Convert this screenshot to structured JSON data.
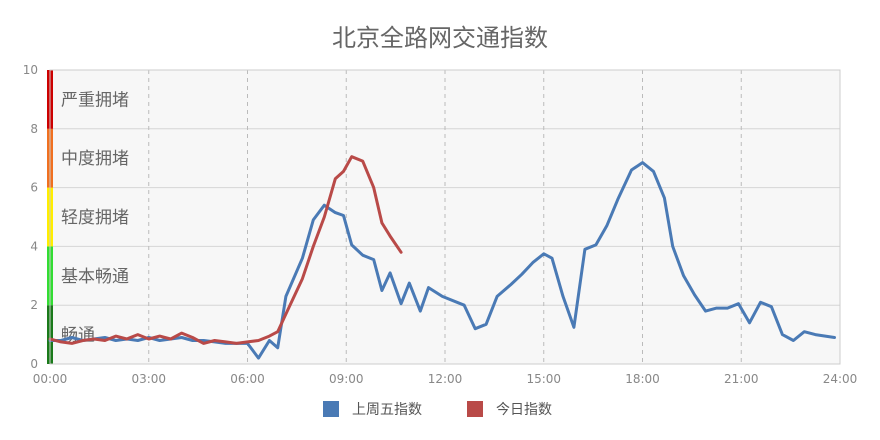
{
  "chart_data": {
    "type": "line",
    "title": "北京全路网交通指数",
    "xlabel": "",
    "ylabel": "",
    "ylim": [
      0,
      10
    ],
    "xlim_hours": [
      0,
      24
    ],
    "x_ticks": [
      "00:00",
      "03:00",
      "06:00",
      "09:00",
      "12:00",
      "15:00",
      "18:00",
      "21:00",
      "24:00"
    ],
    "y_ticks": [
      "0",
      "2",
      "4",
      "6",
      "8",
      "10"
    ],
    "grid": true,
    "legend_position": "bottom-center",
    "bands": [
      {
        "label": "畅通",
        "from": 0,
        "to": 2,
        "color": "#1a7a1a"
      },
      {
        "label": "基本畅通",
        "from": 2,
        "to": 4,
        "color": "#33dd33"
      },
      {
        "label": "轻度拥堵",
        "from": 4,
        "to": 6,
        "color": "#ffee00"
      },
      {
        "label": "中度拥堵",
        "from": 6,
        "to": 8,
        "color": "#f07020"
      },
      {
        "label": "严重拥堵",
        "from": 8,
        "to": 10,
        "color": "#cc0000"
      }
    ],
    "series": [
      {
        "name": "上周五指数",
        "color": "#4a7ab5",
        "points": [
          [
            "00:00",
            0.8
          ],
          [
            "00:20",
            0.8
          ],
          [
            "00:40",
            0.9
          ],
          [
            "01:00",
            0.8
          ],
          [
            "01:20",
            0.85
          ],
          [
            "01:40",
            0.9
          ],
          [
            "02:00",
            0.8
          ],
          [
            "02:20",
            0.85
          ],
          [
            "02:40",
            0.8
          ],
          [
            "03:00",
            0.9
          ],
          [
            "03:20",
            0.8
          ],
          [
            "03:40",
            0.85
          ],
          [
            "04:00",
            0.9
          ],
          [
            "04:20",
            0.8
          ],
          [
            "04:40",
            0.8
          ],
          [
            "05:00",
            0.75
          ],
          [
            "05:20",
            0.7
          ],
          [
            "05:40",
            0.7
          ],
          [
            "06:00",
            0.7
          ],
          [
            "06:20",
            0.2
          ],
          [
            "06:40",
            0.8
          ],
          [
            "06:55",
            0.55
          ],
          [
            "07:10",
            2.3
          ],
          [
            "07:40",
            3.6
          ],
          [
            "08:00",
            4.9
          ],
          [
            "08:20",
            5.4
          ],
          [
            "08:40",
            5.15
          ],
          [
            "08:55",
            5.05
          ],
          [
            "09:10",
            4.05
          ],
          [
            "09:30",
            3.7
          ],
          [
            "09:50",
            3.55
          ],
          [
            "10:05",
            2.5
          ],
          [
            "10:20",
            3.1
          ],
          [
            "10:40",
            2.05
          ],
          [
            "10:55",
            2.75
          ],
          [
            "11:15",
            1.8
          ],
          [
            "11:30",
            2.6
          ],
          [
            "11:55",
            2.3
          ],
          [
            "12:35",
            2.0
          ],
          [
            "12:55",
            1.2
          ],
          [
            "13:15",
            1.35
          ],
          [
            "13:35",
            2.3
          ],
          [
            "14:00",
            2.7
          ],
          [
            "14:20",
            3.05
          ],
          [
            "14:40",
            3.45
          ],
          [
            "15:00",
            3.75
          ],
          [
            "15:15",
            3.6
          ],
          [
            "15:35",
            2.3
          ],
          [
            "15:55",
            1.25
          ],
          [
            "16:15",
            3.9
          ],
          [
            "16:35",
            4.05
          ],
          [
            "16:55",
            4.7
          ],
          [
            "17:15",
            5.6
          ],
          [
            "17:40",
            6.6
          ],
          [
            "18:00",
            6.85
          ],
          [
            "18:20",
            6.55
          ],
          [
            "18:40",
            5.65
          ],
          [
            "18:55",
            4.0
          ],
          [
            "19:15",
            3.0
          ],
          [
            "19:35",
            2.35
          ],
          [
            "19:55",
            1.8
          ],
          [
            "20:15",
            1.9
          ],
          [
            "20:35",
            1.9
          ],
          [
            "20:55",
            2.05
          ],
          [
            "21:15",
            1.4
          ],
          [
            "21:35",
            2.1
          ],
          [
            "21:55",
            1.95
          ],
          [
            "22:15",
            1.0
          ],
          [
            "22:35",
            0.8
          ],
          [
            "22:55",
            1.1
          ],
          [
            "23:15",
            1.0
          ],
          [
            "23:50",
            0.9
          ]
        ]
      },
      {
        "name": "今日指数",
        "color": "#b94a48",
        "points": [
          [
            "00:00",
            0.85
          ],
          [
            "00:20",
            0.75
          ],
          [
            "00:40",
            0.7
          ],
          [
            "01:00",
            0.8
          ],
          [
            "01:20",
            0.85
          ],
          [
            "01:40",
            0.8
          ],
          [
            "02:00",
            0.95
          ],
          [
            "02:20",
            0.85
          ],
          [
            "02:40",
            1.0
          ],
          [
            "03:00",
            0.85
          ],
          [
            "03:20",
            0.95
          ],
          [
            "03:40",
            0.85
          ],
          [
            "04:00",
            1.05
          ],
          [
            "04:20",
            0.9
          ],
          [
            "04:40",
            0.7
          ],
          [
            "05:00",
            0.8
          ],
          [
            "05:20",
            0.75
          ],
          [
            "05:40",
            0.7
          ],
          [
            "06:00",
            0.75
          ],
          [
            "06:20",
            0.8
          ],
          [
            "06:40",
            0.95
          ],
          [
            "06:55",
            1.1
          ],
          [
            "07:10",
            1.7
          ],
          [
            "07:40",
            2.9
          ],
          [
            "08:00",
            4.0
          ],
          [
            "08:20",
            5.0
          ],
          [
            "08:40",
            6.3
          ],
          [
            "08:55",
            6.55
          ],
          [
            "09:10",
            7.05
          ],
          [
            "09:30",
            6.9
          ],
          [
            "09:50",
            6.0
          ],
          [
            "10:05",
            4.8
          ],
          [
            "10:20",
            4.35
          ],
          [
            "10:40",
            3.8
          ]
        ]
      }
    ]
  }
}
